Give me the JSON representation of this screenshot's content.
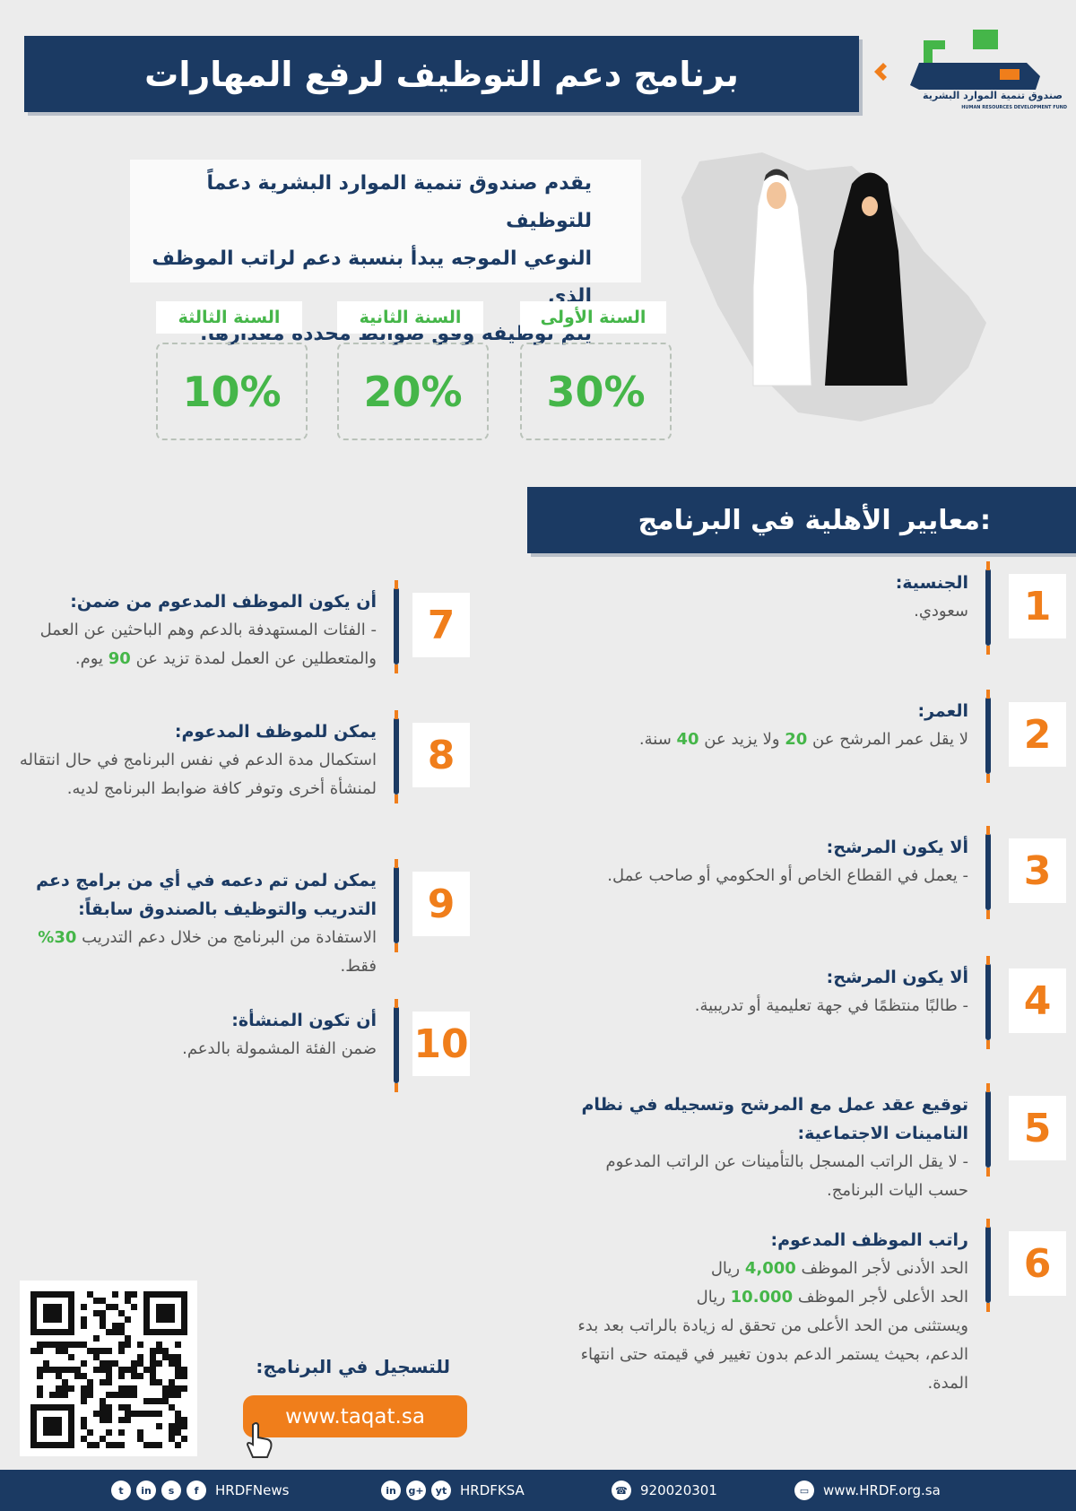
{
  "header": {
    "title": "برنامج دعم التوظيف لرفع المهارات",
    "logo_name": "صندوق تنمية الموارد البشرية",
    "logo_name_en": "HUMAN RESOURCES DEVELOPMENT FUND"
  },
  "intro": [
    "يقدم صندوق تنمية الموارد البشرية دعماً للتوظيف",
    "النوعي الموجه يبدأ بنسبة دعم لراتب الموظف الذي",
    "يتم توظيفه وفق ضوابط محددة مقدارها:"
  ],
  "support_rates": [
    {
      "year": "السنة الأولى",
      "rate": "30%"
    },
    {
      "year": "السنة الثانية",
      "rate": "20%"
    },
    {
      "year": "السنة الثالثة",
      "rate": "10%"
    }
  ],
  "eligibility": {
    "title": "معايير الأهلية في البرنامج:",
    "criteria": [
      {
        "number": "1",
        "title": "الجنسية:",
        "body": [
          [
            {
              "text": "سعودي."
            }
          ]
        ]
      },
      {
        "number": "2",
        "title": "العمر:",
        "body": [
          [
            {
              "text": "لا يقل عمر المرشح عن "
            },
            {
              "text": "20",
              "color": "#45b649"
            },
            {
              "text": " ولا يزيد عن "
            },
            {
              "text": "40",
              "color": "#45b649"
            },
            {
              "text": " سنة."
            }
          ]
        ]
      },
      {
        "number": "3",
        "title": "ألا يكون المرشح:",
        "body": [
          [
            {
              "text": "- يعمل في القطاع الخاص أو الحكومي أو صاحب عمل."
            }
          ]
        ]
      },
      {
        "number": "4",
        "title": "ألا يكون المرشح:",
        "body": [
          [
            {
              "text": "- طالبًا منتظمًا في جهة تعليمية أو تدريبية."
            }
          ]
        ]
      },
      {
        "number": "5",
        "title": "توقيع عقد عمل مع المرشح وتسجيله في نظام التامينات الاجتماعية:",
        "body": [
          [
            {
              "text": "- لا يقل الراتب المسجل بالتأمينات عن الراتب المدعوم حسب اليات البرنامج."
            }
          ]
        ]
      },
      {
        "number": "6",
        "title": "راتب الموظف المدعوم:",
        "body": [
          [
            {
              "text": "الحد الأدنى لأجر الموظف "
            },
            {
              "text": "4,000",
              "color": "#45b649"
            },
            {
              "text": " ريال"
            }
          ],
          [
            {
              "text": "الحد الأعلى لأجر الموظف "
            },
            {
              "text": "10.000",
              "color": "#45b649"
            },
            {
              "text": " ريال"
            }
          ],
          [
            {
              "text": "ويستثنى من الحد الأعلى من تحقق له زيادة بالراتب بعد بدء الدعم، بحيث يستمر الدعم بدون تغيير في قيمته حتى انتهاء المدة."
            }
          ]
        ]
      },
      {
        "number": "7",
        "title": "أن يكون الموظف المدعوم من ضمن:",
        "body": [
          [
            {
              "text": "- الفئات المستهدفة بالدعم وهم الباحثين عن العمل والمتعطلين عن العمل لمدة تزيد عن "
            },
            {
              "text": "90",
              "color": "#45b649"
            },
            {
              "text": " يوم."
            }
          ]
        ]
      },
      {
        "number": "8",
        "title": "يمكن للموظف المدعوم:",
        "body": [
          [
            {
              "text": "استكمال مدة الدعم في نفس البرنامج في حال انتقاله لمنشأة أخرى وتوفر كافة ضوابط البرنامج لديه."
            }
          ]
        ]
      },
      {
        "number": "9",
        "title": "يمكن لمن تم دعمه في أي من برامج دعم التدريب والتوظيف بالصندوق سابقاً:",
        "body": [
          [
            {
              "text": "الاستفادة من البرنامج من خلال دعم التدريب "
            },
            {
              "text": "30%",
              "color": "#45b649"
            },
            {
              "text": " فقط."
            }
          ]
        ]
      },
      {
        "number": "10",
        "title": "أن تكون المنشأة:",
        "body": [
          [
            {
              "text": "ضمن الفئة المشمولة بالدعم."
            }
          ]
        ]
      }
    ]
  },
  "registration": {
    "label": "للتسجيل في البرنامج:",
    "url": "www.taqat.sa"
  },
  "footer": {
    "items": [
      {
        "text": "HRDFNews",
        "icons": [
          "t",
          "in",
          "s",
          "f"
        ]
      },
      {
        "text": "HRDFKSA",
        "icons": [
          "in",
          "g+",
          "yt"
        ]
      },
      {
        "text": "920020301",
        "icons": [
          "☎"
        ]
      },
      {
        "text": "www.HRDF.org.sa",
        "icons": [
          "▭"
        ]
      }
    ]
  }
}
